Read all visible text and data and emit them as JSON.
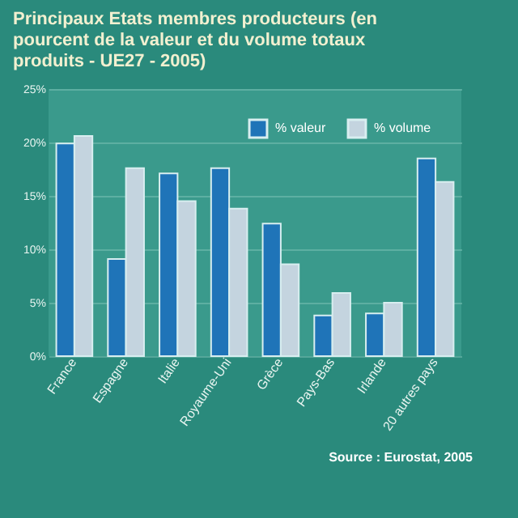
{
  "chart_data": {
    "type": "bar",
    "title": "Principaux Etats membres producteurs (en pourcent de la valeur et du volume totaux produits - UE27 - 2005)",
    "categories": [
      "France",
      "Espagne",
      "Italie",
      "Royaume-Uni",
      "Grèce",
      "Pays-Bas",
      "Irlande",
      "20 autres pays"
    ],
    "series": [
      {
        "name": "% valeur",
        "color": "#1f74b8",
        "values": [
          19.9,
          9.1,
          17.1,
          17.6,
          12.4,
          3.8,
          4.0,
          18.5
        ]
      },
      {
        "name": "% volume",
        "color": "#c4d4df",
        "values": [
          20.6,
          17.6,
          14.5,
          13.8,
          8.6,
          5.9,
          5.0,
          16.3
        ]
      }
    ],
    "ylim": [
      0,
      25
    ],
    "yticks": [
      {
        "value": 0,
        "label": "0%"
      },
      {
        "value": 5,
        "label": "5%"
      },
      {
        "value": 10,
        "label": "10%"
      },
      {
        "value": 15,
        "label": "15%"
      },
      {
        "value": 20,
        "label": "20%"
      },
      {
        "value": 25,
        "label": "25%"
      }
    ],
    "grid": "y",
    "legend": "top right",
    "annotations": [
      "Source : Eurostat, 2005"
    ]
  }
}
